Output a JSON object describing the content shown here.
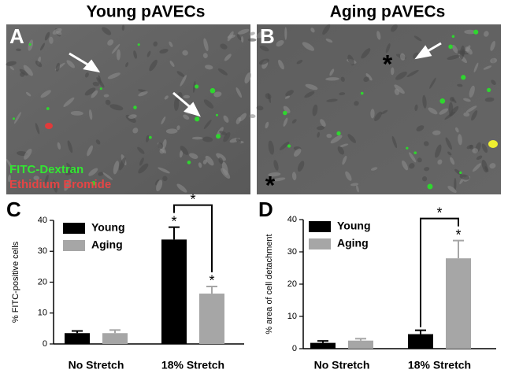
{
  "panels": [
    {
      "letter": "A",
      "title": "Young pAVECs",
      "legend": [
        "FITC-Dextran",
        "Ethidium Bromide"
      ]
    },
    {
      "letter": "B",
      "title": "Aging pAVECs",
      "marks": [
        "*",
        "*"
      ]
    }
  ],
  "chart_data": [
    {
      "type": "bar",
      "letter": "C",
      "ylabel": "% FITC-positive cells",
      "categories": [
        "No Stretch",
        "18% Stretch"
      ],
      "series": [
        {
          "name": "Young",
          "color": "#000000",
          "values": [
            3.5,
            33.8
          ],
          "errors": [
            0.7,
            4
          ]
        },
        {
          "name": "Aging",
          "color": "#a6a6a6",
          "values": [
            3.5,
            16.3
          ],
          "errors": [
            1,
            2.3
          ]
        }
      ],
      "ylim": [
        0,
        40
      ],
      "yticks": [
        0,
        10,
        20,
        30,
        40
      ],
      "annotations": [
        {
          "text": "*",
          "series": "Young",
          "category": "18% Stretch"
        },
        {
          "text": "*",
          "series": "Aging",
          "category": "18% Stretch"
        },
        {
          "text": "*",
          "between": [
            "Young",
            "Aging"
          ],
          "category": "18% Stretch"
        }
      ]
    },
    {
      "type": "bar",
      "letter": "D",
      "ylabel": "% area of cell detachment",
      "categories": [
        "No Stretch",
        "18% Stretch"
      ],
      "series": [
        {
          "name": "Young",
          "color": "#000000",
          "values": [
            1.8,
            4.5
          ],
          "errors": [
            0.6,
            1.2
          ]
        },
        {
          "name": "Aging",
          "color": "#a6a6a6",
          "values": [
            2.5,
            28
          ],
          "errors": [
            0.6,
            5.5
          ]
        }
      ],
      "ylim": [
        0,
        40
      ],
      "yticks": [
        0,
        10,
        20,
        30,
        40
      ],
      "annotations": [
        {
          "text": "*",
          "series": "Aging",
          "category": "18% Stretch"
        },
        {
          "text": "*",
          "between": [
            "Young",
            "Aging"
          ],
          "category": "18% Stretch"
        }
      ]
    }
  ]
}
